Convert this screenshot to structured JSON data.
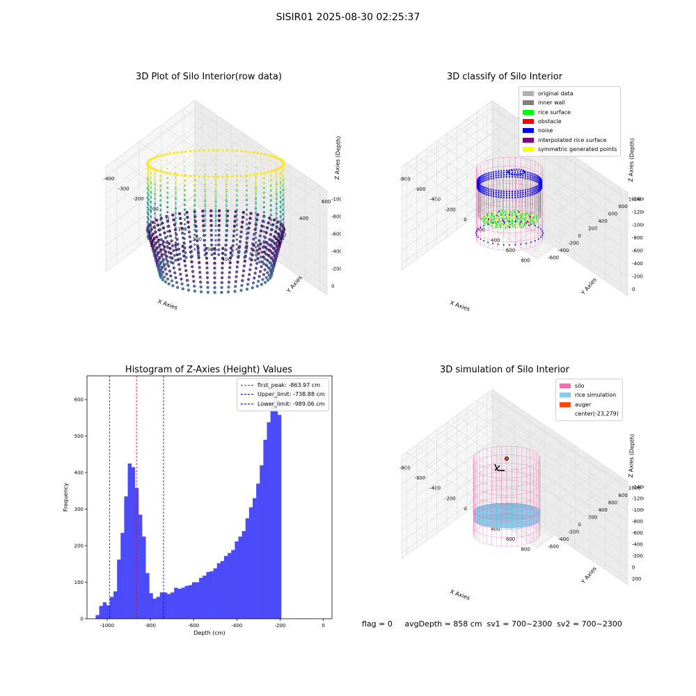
{
  "figure_title": "SISIR01 2025-08-30 02:25:37",
  "status_text": "flag = 0     avgDepth = 858 cm  sv1 = 700~2300  sv2 = 700~2300",
  "chart_data": [
    {
      "type": "scatter3d",
      "title": "3D Plot of Silo Interior(row data)",
      "xlabel": "X Axies",
      "ylabel": "Y Axies",
      "zlabel": "Z Axies (Depth)",
      "x_ticks": [
        "-400",
        "-300",
        "-200",
        "-100",
        "0",
        "100",
        "200",
        "300",
        "400"
      ],
      "y_ticks": [
        "0",
        "200",
        "400",
        "600"
      ],
      "z_ticks": [
        "0",
        "-200",
        "-400",
        "-600",
        "-800",
        "-1000"
      ],
      "colormap": "viridis"
    },
    {
      "type": "scatter3d",
      "title": "3D classify of Silo Interior",
      "xlabel": "X Axies",
      "ylabel": "Y Axies",
      "zlabel": "Z Axies (Depth)",
      "x_ticks": [
        "-800",
        "-600",
        "-400",
        "-200",
        "0",
        "200",
        "400",
        "600",
        "800"
      ],
      "y_ticks": [
        "-600",
        "-400",
        "-200",
        "0",
        "200",
        "400",
        "600",
        "800",
        "1000"
      ],
      "z_ticks": [
        "0",
        "-200",
        "-400",
        "-600",
        "-800",
        "-1000",
        "-1200",
        "-1400"
      ],
      "legend": [
        {
          "label": "original data",
          "color": "#b0b0b0"
        },
        {
          "label": "inner wall",
          "color": "#808080"
        },
        {
          "label": "rice surface",
          "color": "#00ff00"
        },
        {
          "label": "obstacle",
          "color": "#ff0000"
        },
        {
          "label": "noise",
          "color": "#0000ff"
        },
        {
          "label": "interpolated rice surface",
          "color": "#800080"
        },
        {
          "label": "symmetric generated points",
          "color": "#ffff00"
        }
      ]
    },
    {
      "type": "bar",
      "title": "Histogram of Z-Axies (Height) Values",
      "xlabel": "Depth (cm)",
      "ylabel": "Frequency",
      "bar_color": "#4b4bfa",
      "x_ticks": [
        -1000,
        -800,
        -600,
        -400,
        -200,
        0
      ],
      "y_ticks": [
        0,
        100,
        200,
        300,
        400,
        500,
        600
      ],
      "xlim": [
        -1093,
        40
      ],
      "ylim": [
        0,
        665
      ],
      "bin_start": -1053,
      "bin_width": 16.5,
      "values": [
        10,
        35,
        45,
        37,
        60,
        75,
        162,
        235,
        335,
        425,
        415,
        358,
        285,
        225,
        125,
        70,
        55,
        60,
        72,
        72,
        68,
        72,
        85,
        82,
        85,
        90,
        92,
        100,
        100,
        112,
        118,
        128,
        130,
        138,
        152,
        158,
        172,
        180,
        188,
        212,
        225,
        240,
        275,
        305,
        330,
        370,
        420,
        490,
        538,
        592,
        632,
        558
      ],
      "vlines": [
        {
          "label": "first_peak: -863.97 cm",
          "x": -863.97,
          "color": "#ff0000"
        },
        {
          "label": "Upper_limit: -738.88 cm",
          "x": -738.88,
          "color": "#0000ff"
        },
        {
          "label": "Lower_limit: -989.06 cm",
          "x": -989.06,
          "color": "#0000ff"
        }
      ]
    },
    {
      "type": "simulation3d",
      "title": "3D simulation of Silo Interior",
      "xlabel": "X Axies",
      "ylabel": "Y Axies",
      "zlabel": "Z Axies (Depth)",
      "x_ticks": [
        "-800",
        "-600",
        "-400",
        "-200",
        "0",
        "200",
        "400",
        "600",
        "800"
      ],
      "y_ticks": [
        "-600",
        "-400",
        "-200",
        "0",
        "200",
        "400",
        "600",
        "800",
        "1000"
      ],
      "z_ticks": [
        "200",
        "0",
        "-200",
        "-400",
        "-600",
        "-800",
        "-1000",
        "-1200",
        "-1400"
      ],
      "legend": [
        {
          "label": "silo",
          "color": "#ff69b4"
        },
        {
          "label": "rice simulation",
          "color": "#87ceeb"
        },
        {
          "label": "auger",
          "color": "#ff4500"
        },
        {
          "label": "center(-23,279)",
          "color": ""
        }
      ]
    }
  ]
}
